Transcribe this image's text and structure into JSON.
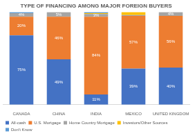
{
  "chart_data": {
    "type": "bar",
    "title": "TYPE OF FINANCING AMONG MAJOR FOREIGN BUYERS",
    "categories": [
      "CANADA",
      "CHINA",
      "INDIA",
      "MEXICO",
      "UNITED KINGDOM"
    ],
    "stacked": true,
    "data_labels": true,
    "legend": "bottom",
    "grid": false,
    "tick_labels": "x",
    "ylim": [
      0,
      100
    ],
    "series": [
      {
        "name": "All-cash",
        "color": "#4472c4",
        "values": [
          75,
          49,
          11,
          39,
          40
        ],
        "value_labels": [
          "75%",
          "49%",
          "11%",
          "39%",
          "40%"
        ]
      },
      {
        "name": "U.S. Mortgage",
        "color": "#ed7d31",
        "values": [
          20,
          46,
          84,
          57,
          56
        ],
        "value_labels": [
          "20%",
          "46%",
          "84%",
          "57%",
          "56%"
        ]
      },
      {
        "name": "Home Country Mortgage",
        "color": "#a5a5a5",
        "values": [
          4,
          5,
          3,
          1,
          4
        ],
        "value_labels": [
          "4%",
          "5%",
          "3%",
          null,
          "4%"
        ]
      },
      {
        "name": "Investors/Other Sources",
        "color": "#ffc000",
        "values": [
          0,
          0,
          1,
          3,
          0
        ],
        "value_labels": [
          null,
          null,
          null,
          null,
          null
        ]
      },
      {
        "name": "Don't Know",
        "color": "#5b9bd5",
        "values": [
          1,
          0,
          1,
          0,
          0
        ],
        "value_labels": [
          null,
          null,
          null,
          null,
          null
        ]
      }
    ]
  }
}
